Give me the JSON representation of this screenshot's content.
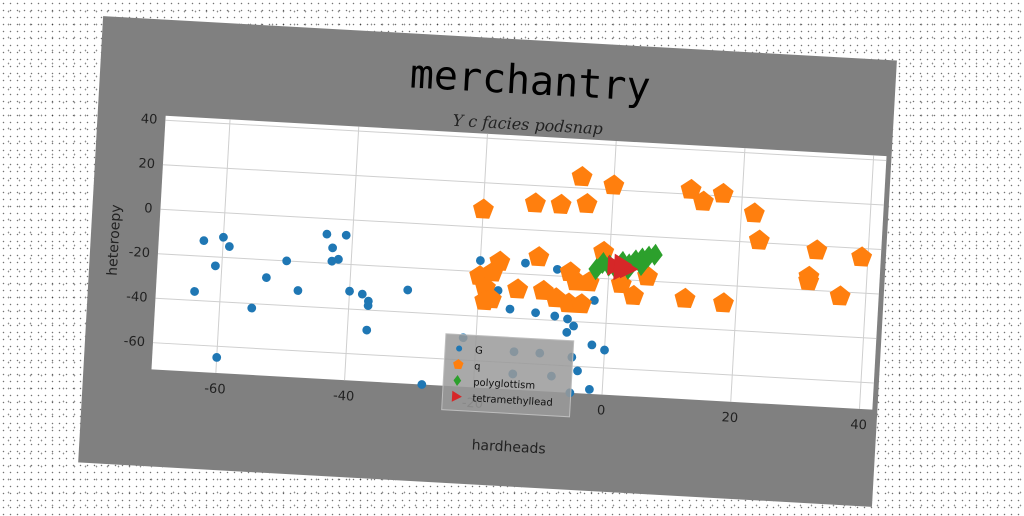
{
  "chart_data": {
    "type": "scatter",
    "title": "merchantry",
    "subtitle": "Y c facies podsnap",
    "xlabel": "hardheads",
    "ylabel": "heteroepy",
    "xlim": [
      -70,
      42
    ],
    "ylim": [
      -72,
      42
    ],
    "xticks": [
      -60,
      -40,
      -20,
      0,
      20,
      40
    ],
    "yticks": [
      -60,
      -40,
      -20,
      0,
      20,
      40
    ],
    "grid": true,
    "legend_position": "bottom-center",
    "series": [
      {
        "name": "G",
        "color": "#1f77b4",
        "marker": "circle",
        "points": [
          [
            -63,
            -13
          ],
          [
            -60,
            -11
          ],
          [
            -59,
            -15
          ],
          [
            -61,
            -24
          ],
          [
            -64,
            -36
          ],
          [
            -60,
            -65
          ],
          [
            -55,
            -42
          ],
          [
            -53,
            -28
          ],
          [
            -50,
            -20
          ],
          [
            -48,
            -33
          ],
          [
            -44,
            -7
          ],
          [
            -41,
            -7
          ],
          [
            -43,
            -13
          ],
          [
            -43,
            -19
          ],
          [
            -42,
            -18
          ],
          [
            -40,
            -32
          ],
          [
            -38,
            -33
          ],
          [
            -37,
            -36
          ],
          [
            -37,
            -38
          ],
          [
            -37,
            -49
          ],
          [
            -31,
            -30
          ],
          [
            -28,
            -72
          ],
          [
            -22,
            -50
          ],
          [
            -20,
            -15
          ],
          [
            -18,
            -20
          ],
          [
            -17,
            -28
          ],
          [
            -15,
            -36
          ],
          [
            -13,
            -15
          ],
          [
            -11,
            -13
          ],
          [
            -11,
            -37
          ],
          [
            -8,
            -17
          ],
          [
            -8,
            -38
          ],
          [
            -6,
            -39
          ],
          [
            -6,
            -45
          ],
          [
            -5,
            -42
          ],
          [
            -5,
            -56
          ],
          [
            -4,
            -62
          ],
          [
            -2,
            -50
          ],
          [
            -2,
            -30
          ],
          [
            0,
            -52
          ],
          [
            -2,
            -70
          ],
          [
            -8,
            -65
          ],
          [
            -10,
            -55
          ],
          [
            -14,
            -55
          ],
          [
            -14,
            -65
          ],
          [
            -5,
            -72
          ]
        ]
      },
      {
        "name": "q",
        "color": "#ff7f0e",
        "marker": "pentagon",
        "points": [
          [
            -20,
            8
          ],
          [
            -12,
            12
          ],
          [
            -8,
            12
          ],
          [
            -4,
            13
          ],
          [
            -5,
            25
          ],
          [
            0,
            22
          ],
          [
            12,
            22
          ],
          [
            14,
            17
          ],
          [
            17,
            21
          ],
          [
            22,
            13
          ],
          [
            23,
            1
          ],
          [
            32,
            -2
          ],
          [
            39,
            -4
          ],
          [
            -20,
            -22
          ],
          [
            -19,
            -27
          ],
          [
            -18,
            -20
          ],
          [
            -19,
            -33
          ],
          [
            -17,
            -15
          ],
          [
            -18,
            -32
          ],
          [
            -11,
            -12
          ],
          [
            -10,
            -27
          ],
          [
            -8,
            -30
          ],
          [
            -6,
            -32
          ],
          [
            -4,
            -32
          ],
          [
            -6,
            -18
          ],
          [
            -5,
            -22
          ],
          [
            -3,
            -22
          ],
          [
            -1,
            -8
          ],
          [
            2,
            -22
          ],
          [
            4,
            -27
          ],
          [
            6,
            -18
          ],
          [
            12,
            -27
          ],
          [
            18,
            -28
          ],
          [
            31,
            -14
          ],
          [
            31,
            -16
          ],
          [
            36,
            -22
          ],
          [
            -14,
            -27
          ]
        ]
      },
      {
        "name": "polyglottism",
        "color": "#2ca02c",
        "marker": "diamond",
        "points": [
          [
            -2,
            -16
          ],
          [
            0,
            -14
          ],
          [
            2,
            -12
          ],
          [
            3,
            -13
          ],
          [
            4,
            -11
          ],
          [
            5,
            -10
          ],
          [
            6,
            -9
          ],
          [
            7,
            -8
          ],
          [
            1,
            -15
          ],
          [
            3,
            -15
          ],
          [
            5,
            -13
          ],
          [
            -1,
            -13
          ]
        ]
      },
      {
        "name": "tetramethyllead",
        "color": "#d62728",
        "marker": "triangle-right",
        "points": [
          [
            1,
            -14
          ],
          [
            2,
            -16
          ],
          [
            3,
            -15
          ],
          [
            2,
            -13
          ]
        ]
      }
    ]
  }
}
